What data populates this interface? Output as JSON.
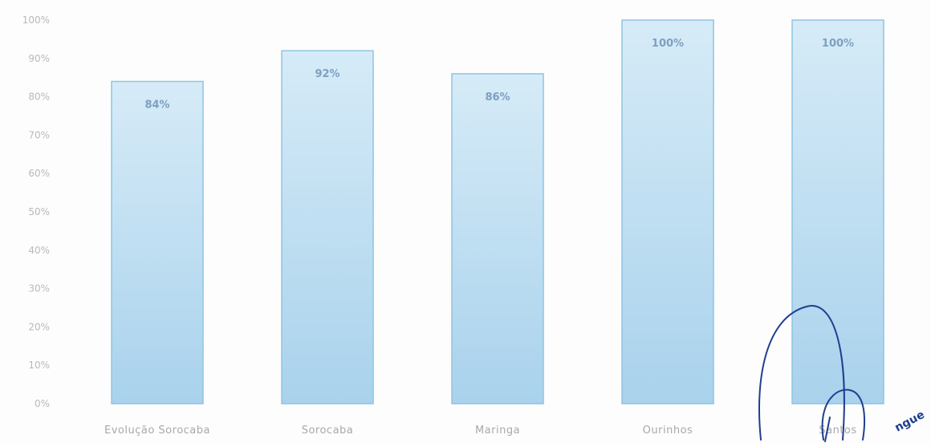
{
  "chart_data": {
    "type": "bar",
    "categories": [
      "Evolução Sorocaba",
      "Sorocaba",
      "Maringa",
      "Ourinhos",
      "Santos"
    ],
    "values": [
      84,
      92,
      86,
      100,
      100
    ],
    "data_labels": [
      "84%",
      "92%",
      "86%",
      "100%",
      "100%"
    ],
    "ylim": [
      0,
      100
    ],
    "y_ticks": [
      0,
      10,
      20,
      30,
      40,
      50,
      60,
      70,
      80,
      90,
      100
    ],
    "y_tick_labels": [
      "0%",
      "10%",
      "20%",
      "30%",
      "40%",
      "50%",
      "60%",
      "70%",
      "80%",
      "90%",
      "100%"
    ],
    "grid": false,
    "legend": "none",
    "colors": {
      "bar_top": "#d6ebf7",
      "bar_bottom": "#a9d2ec",
      "bar_edge": "#8ec4e4",
      "data_label": "#7d9fc2",
      "tick_label": "#b9b9b9",
      "signature_ink": "#1f3f8f"
    }
  },
  "annotations": {
    "signature_text": "ngue"
  }
}
